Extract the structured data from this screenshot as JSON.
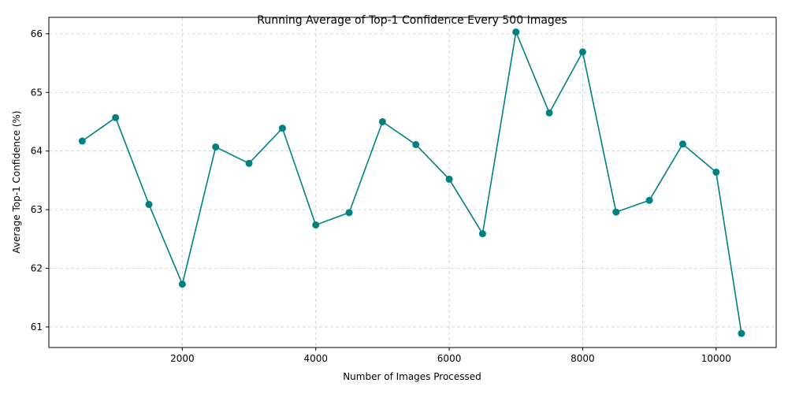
{
  "chart_data": {
    "type": "line",
    "title": "Running Average of Top-1 Confidence Every 500 Images",
    "xlabel": "Number of Images Processed",
    "ylabel": "Average Top-1 Confidence (%)",
    "xlim": [
      0,
      10900
    ],
    "ylim": [
      60.65,
      66.28
    ],
    "xticks": [
      2000,
      4000,
      6000,
      8000,
      10000
    ],
    "yticks": [
      61,
      62,
      63,
      64,
      65,
      66
    ],
    "grid": true,
    "line_style": "dashed-grid",
    "series": [
      {
        "color": "#008080",
        "marker": "circle",
        "x": [
          500,
          1000,
          1500,
          2000,
          2500,
          3000,
          3500,
          4000,
          4500,
          5000,
          5500,
          6000,
          6500,
          7000,
          7500,
          8000,
          8500,
          9000,
          9500,
          10000,
          10380
        ],
        "y": [
          64.17,
          64.57,
          63.09,
          61.73,
          64.07,
          63.79,
          64.39,
          62.74,
          62.95,
          64.5,
          64.11,
          63.52,
          62.59,
          66.03,
          64.65,
          65.69,
          62.96,
          63.16,
          64.12,
          63.64,
          60.89
        ]
      }
    ]
  }
}
